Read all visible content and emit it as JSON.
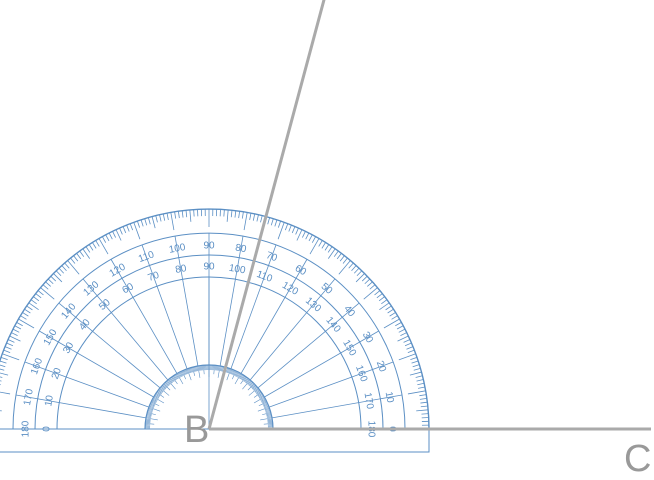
{
  "diagram": {
    "points": {
      "vertex_label": "B",
      "ray_end_label": "C"
    },
    "protractor": {
      "outer_scale_labels": [
        "0",
        "10",
        "20",
        "30",
        "40",
        "50",
        "60",
        "70",
        "80",
        "90",
        "100",
        "110",
        "120",
        "130",
        "140",
        "150",
        "160",
        "170",
        "180"
      ],
      "inner_scale_labels": [
        "180",
        "170",
        "160",
        "150",
        "140",
        "130",
        "120",
        "110",
        "100",
        "90",
        "80",
        "70",
        "60",
        "50",
        "40",
        "30",
        "20",
        "10",
        "0"
      ],
      "color": "#5b8fc4"
    },
    "rays": {
      "baseline_direction_deg": 0,
      "second_ray_direction_deg": 75
    },
    "colors": {
      "ray": "#aaaaaa",
      "label": "#999999"
    }
  }
}
